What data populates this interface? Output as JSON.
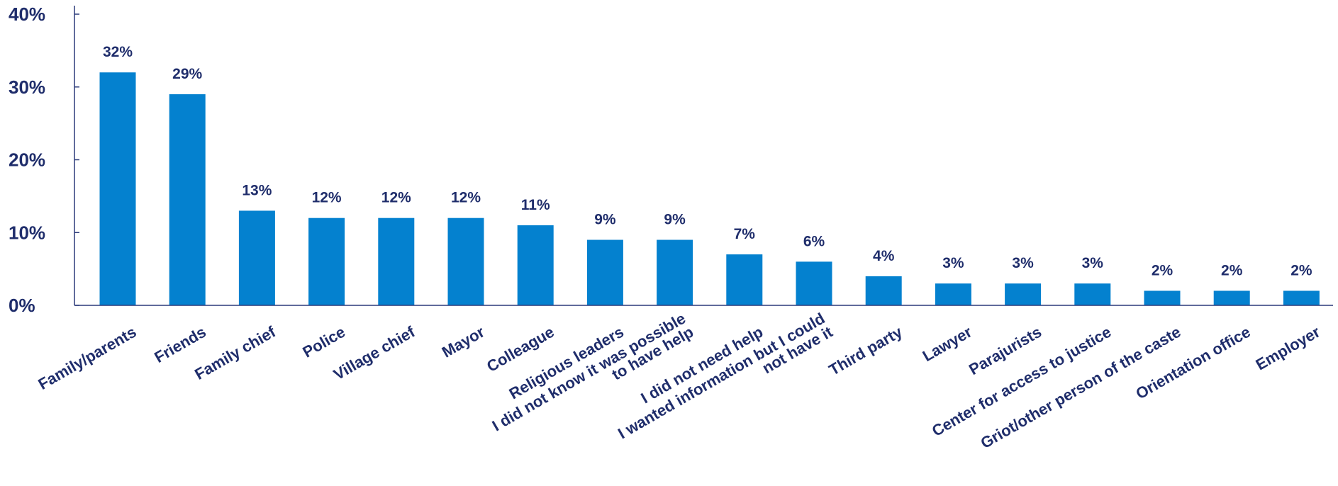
{
  "chart_data": {
    "type": "bar",
    "title": "",
    "xlabel": "",
    "ylabel": "",
    "ylim": [
      0,
      40
    ],
    "yticks": [
      "0%",
      "10%",
      "20%",
      "30%",
      "40%"
    ],
    "ytick_values": [
      0,
      10,
      20,
      30,
      40
    ],
    "grid": false,
    "legend": "none",
    "bar_color": "#0481cf",
    "text_color": "#1f2d6b",
    "categories": [
      [
        "Family/parents"
      ],
      [
        "Friends"
      ],
      [
        "Family chief"
      ],
      [
        "Police"
      ],
      [
        "Village chief"
      ],
      [
        "Mayor"
      ],
      [
        "Colleague"
      ],
      [
        "Religious leaders"
      ],
      [
        "I did not know it was possible",
        "to have help"
      ],
      [
        "I did not need help"
      ],
      [
        "I wanted information but I could",
        "not have it"
      ],
      [
        "Third party"
      ],
      [
        "Lawyer"
      ],
      [
        "Parajurists"
      ],
      [
        "Center for access to justice"
      ],
      [
        "Griot/other person of the caste"
      ],
      [
        "Orientation office"
      ],
      [
        "Employer"
      ]
    ],
    "values": [
      32,
      29,
      13,
      12,
      12,
      12,
      11,
      9,
      9,
      7,
      6,
      4,
      3,
      3,
      3,
      2,
      2,
      2
    ],
    "data_labels": [
      "32%",
      "29%",
      "13%",
      "12%",
      "12%",
      "12%",
      "11%",
      "9%",
      "9%",
      "7%",
      "6%",
      "4%",
      "3%",
      "3%",
      "3%",
      "2%",
      "2%",
      "2%"
    ]
  }
}
